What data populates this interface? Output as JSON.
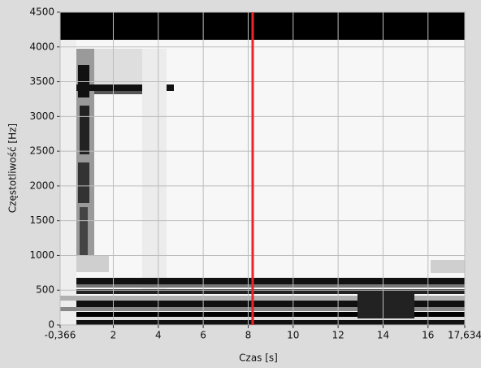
{
  "chart_data": {
    "type": "spectrogram",
    "x_label": "Czas [s]",
    "y_label": "Częstotliwość [Hz]",
    "xlim": [
      -0.366,
      17.634
    ],
    "xticks": [
      {
        "value": -0.366,
        "label": "-0,366"
      },
      2,
      4,
      6,
      8,
      10,
      12,
      14,
      16,
      {
        "value": 17.634,
        "label": "17,634"
      }
    ],
    "ylim": [
      0,
      4500
    ],
    "yticks": [
      0,
      500,
      1000,
      1500,
      2000,
      2500,
      3000,
      3500,
      4000,
      4500
    ],
    "grid": true,
    "cursor_x": 8.2,
    "cursor_color": "#e8262a"
  }
}
